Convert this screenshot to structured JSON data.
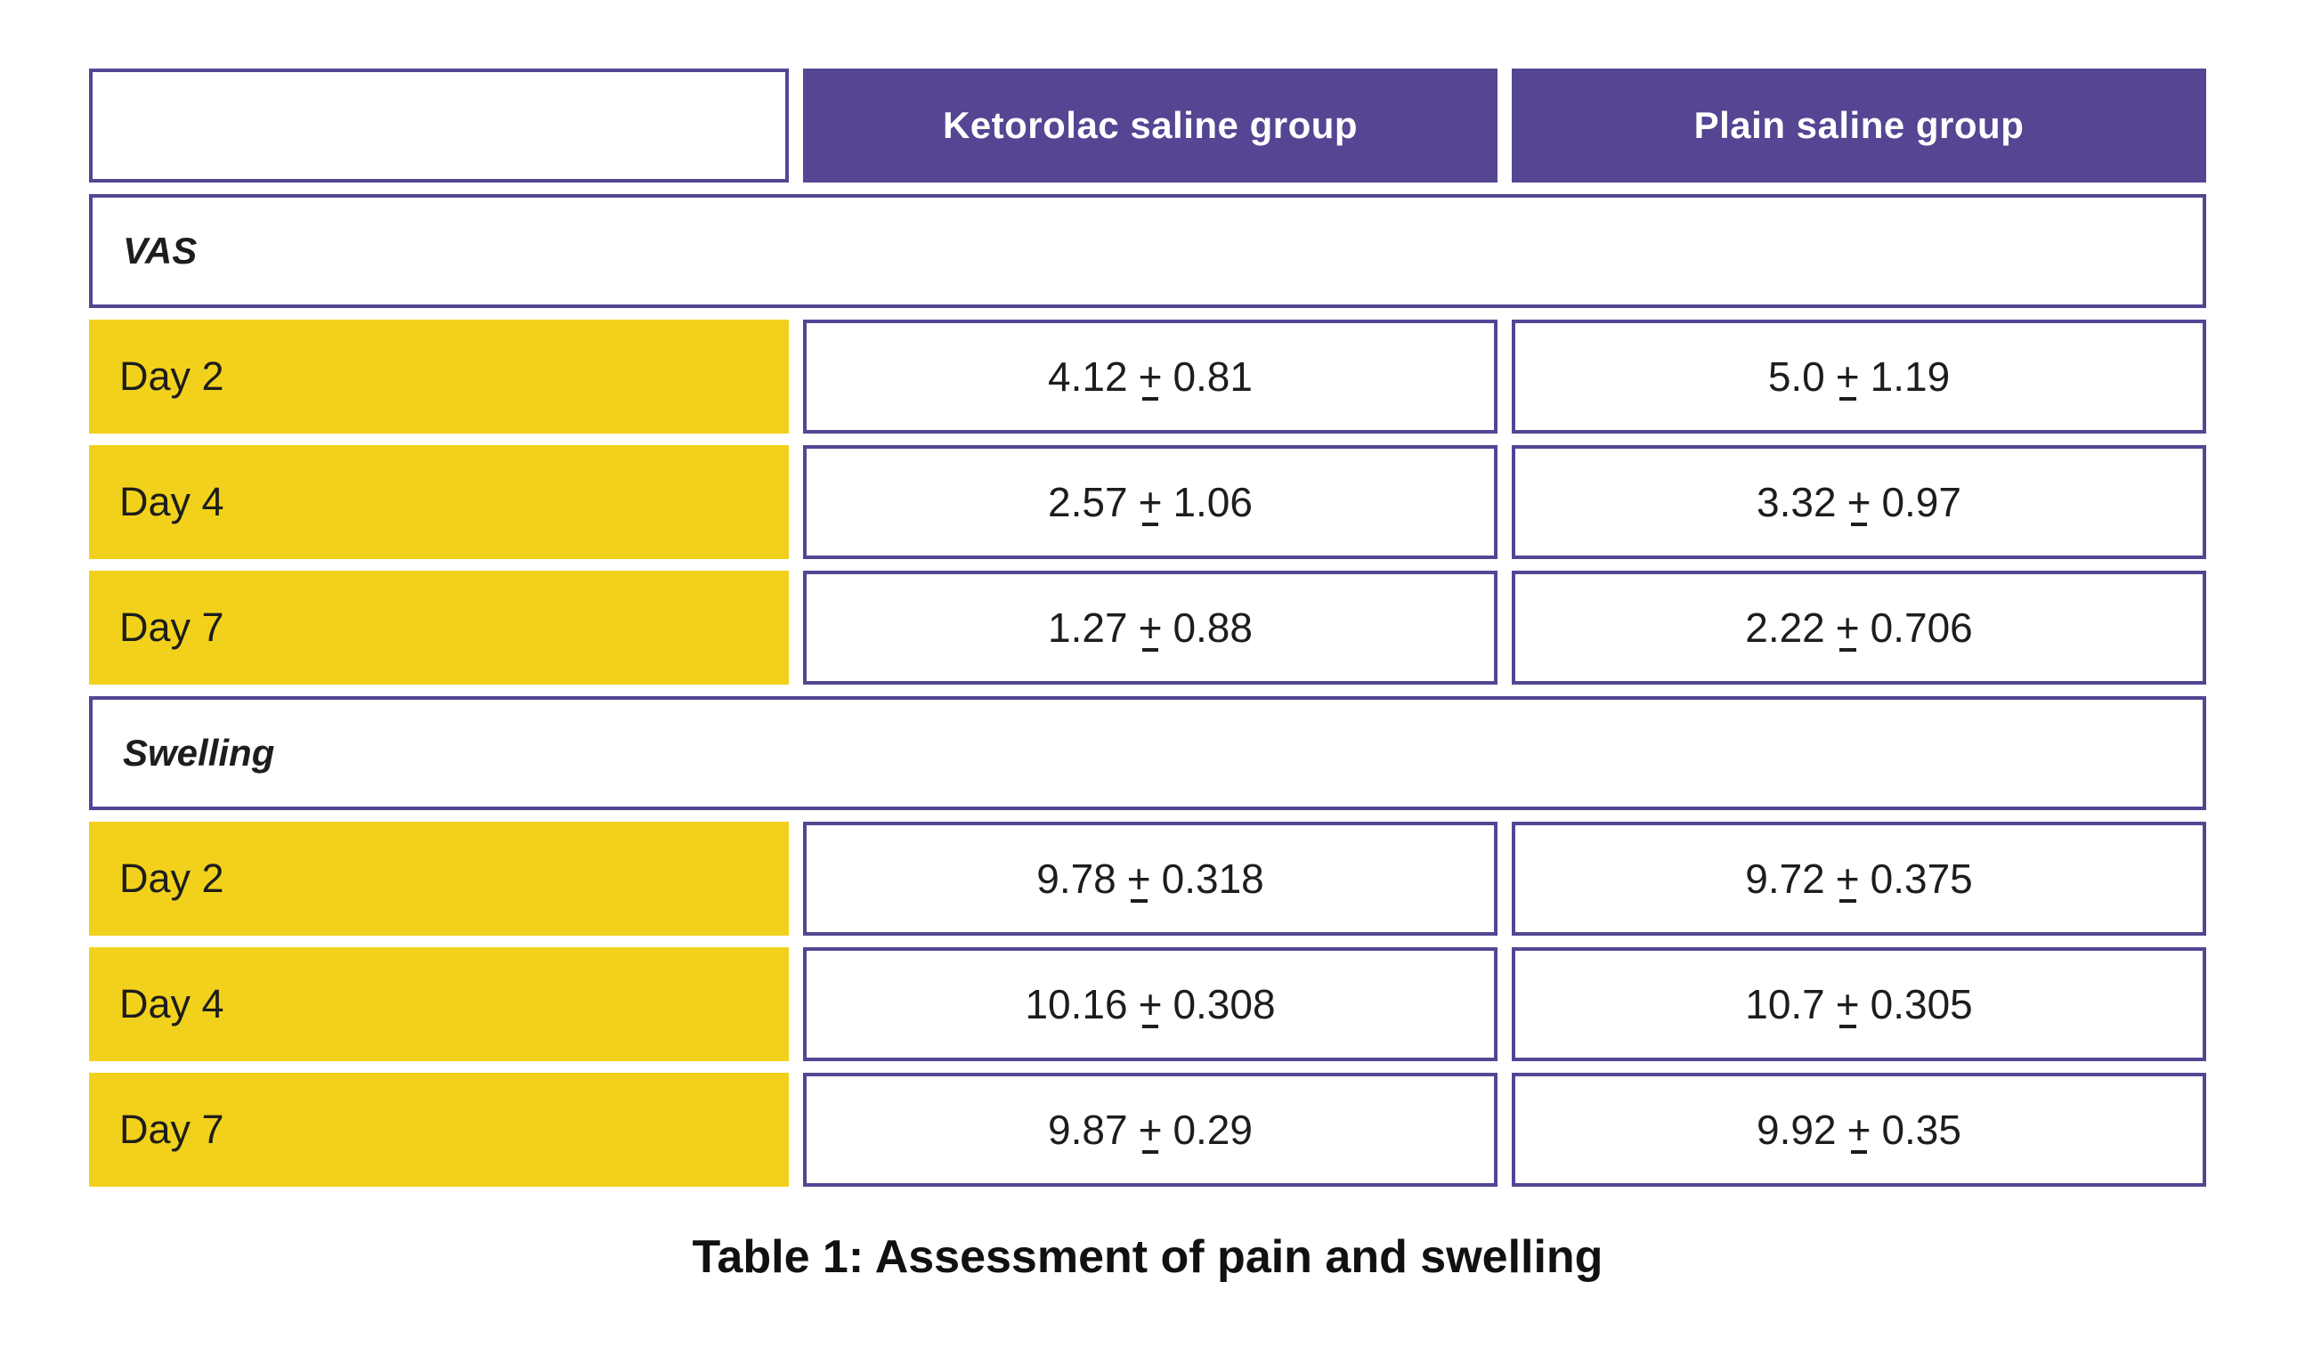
{
  "table": {
    "header": {
      "empty": "",
      "ketorolac": "Ketorolac saline group",
      "plain": "Plain saline group"
    },
    "sections": [
      {
        "label": "VAS",
        "rows": [
          {
            "label": "Day 2",
            "ketorolac": {
              "mean": "4.12",
              "sd": "0.81"
            },
            "plain": {
              "mean": "5.0",
              "sd": "1.19"
            }
          },
          {
            "label": "Day 4",
            "ketorolac": {
              "mean": "2.57",
              "sd": "1.06"
            },
            "plain": {
              "mean": "3.32",
              "sd": "0.97"
            }
          },
          {
            "label": "Day 7",
            "ketorolac": {
              "mean": "1.27",
              "sd": "0.88"
            },
            "plain": {
              "mean": "2.22",
              "sd": "0.706"
            }
          }
        ]
      },
      {
        "label": "Swelling",
        "rows": [
          {
            "label": "Day 2",
            "ketorolac": {
              "mean": "9.78",
              "sd": "0.318"
            },
            "plain": {
              "mean": "9.72",
              "sd": "0.375"
            }
          },
          {
            "label": "Day 4",
            "ketorolac": {
              "mean": "10.16",
              "sd": "0.308"
            },
            "plain": {
              "mean": "10.7",
              "sd": "0.305"
            }
          },
          {
            "label": "Day 7",
            "ketorolac": {
              "mean": "9.87",
              "sd": "0.29"
            },
            "plain": {
              "mean": "9.92",
              "sd": "0.35"
            }
          }
        ]
      }
    ]
  },
  "symbols": {
    "plus_minus": "+"
  },
  "caption": "Table 1: Assessment of pain and swelling",
  "colors": {
    "accent_purple": "#554593",
    "highlight_yellow": "#F2D11C",
    "text": "#1d1d1b"
  }
}
